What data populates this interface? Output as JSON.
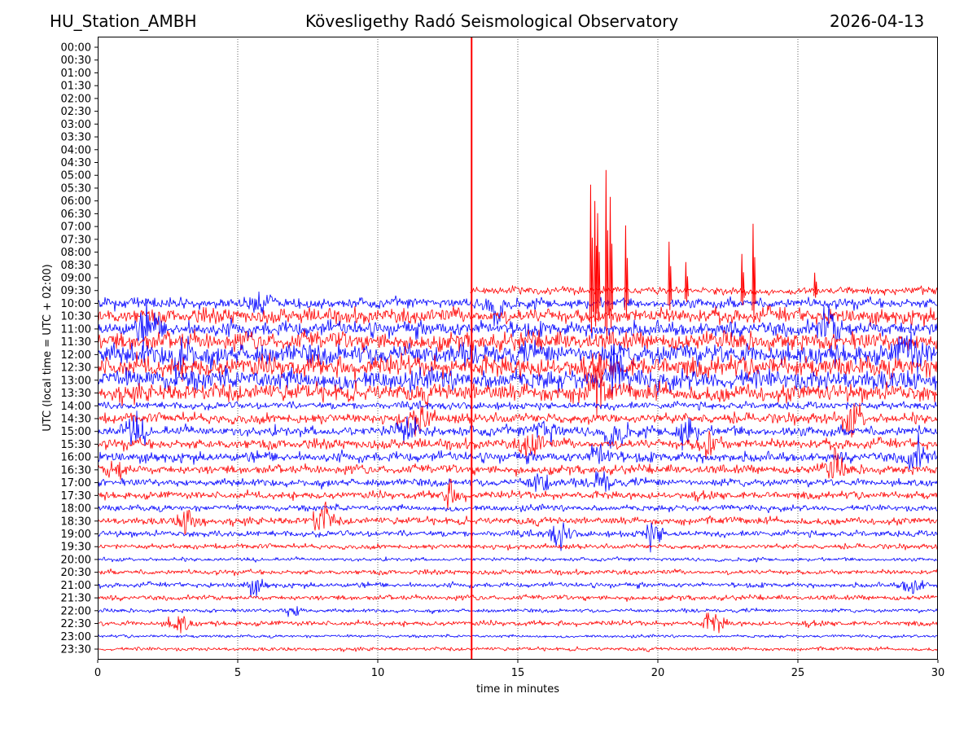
{
  "header": {
    "station": "HU_Station_AMBH",
    "title": "Kövesligethy Radó Seismological Observatory",
    "date": "2026-04-13"
  },
  "chart_data": {
    "type": "line",
    "title": "Kövesligethy Radó Seismological Observatory",
    "xlabel": "time in minutes",
    "ylabel": "UTC (local time = UTC + 02:00)",
    "xlim": [
      0,
      30
    ],
    "xticks": [
      "0",
      "5",
      "10",
      "15",
      "20",
      "25",
      "30"
    ],
    "grid_x_minutes": [
      5,
      10,
      15,
      20,
      25
    ],
    "row_labels": [
      "00:00",
      "00:30",
      "01:00",
      "01:30",
      "02:00",
      "02:30",
      "03:00",
      "03:30",
      "04:00",
      "04:30",
      "05:00",
      "05:30",
      "06:00",
      "06:30",
      "07:00",
      "07:30",
      "08:00",
      "08:30",
      "09:00",
      "09:30",
      "10:00",
      "10:30",
      "11:00",
      "11:30",
      "12:00",
      "12:30",
      "13:00",
      "13:30",
      "14:00",
      "14:30",
      "15:00",
      "15:30",
      "16:00",
      "16:30",
      "17:00",
      "17:30",
      "18:00",
      "18:30",
      "19:00",
      "19:30",
      "20:00",
      "20:30",
      "21:00",
      "21:30",
      "22:00",
      "22:30",
      "23:00",
      "23:30"
    ],
    "colors": {
      "even_rows": "#0000ff",
      "odd_rows": "#ff0000"
    },
    "data_start": {
      "row": "09:30",
      "minute": 13.3
    },
    "row_noise_amplitude": {
      "19": 3,
      "20": 4,
      "21": 6,
      "22": 6,
      "23": 7,
      "24": 8,
      "25": 8,
      "26": 8,
      "27": 7,
      "28": 3,
      "29": 4,
      "30": 4,
      "31": 4,
      "32": 4,
      "33": 3.5,
      "34": 3,
      "35": 3,
      "36": 2.5,
      "37": 3,
      "38": 2.5,
      "39": 2,
      "40": 1.5,
      "41": 2,
      "42": 2,
      "43": 2,
      "44": 1.5,
      "45": 2,
      "46": 1.2,
      "47": 1.5
    },
    "events": [
      {
        "row": "09:30",
        "minute": 13.35,
        "peak": -320,
        "note": "main quake, clipped"
      },
      {
        "row": "09:30",
        "minute": 17.6,
        "peak": 130
      },
      {
        "row": "09:30",
        "minute": 17.75,
        "peak": 110
      },
      {
        "row": "09:30",
        "minute": 17.85,
        "peak": 95
      },
      {
        "row": "09:30",
        "minute": 18.15,
        "peak": 148
      },
      {
        "row": "09:30",
        "minute": 18.3,
        "peak": 115
      },
      {
        "row": "09:30",
        "minute": 18.85,
        "peak": 80
      },
      {
        "row": "09:30",
        "minute": 20.4,
        "peak": 60
      },
      {
        "row": "09:30",
        "minute": 21.0,
        "peak": 35
      },
      {
        "row": "09:30",
        "minute": 23.0,
        "peak": 45
      },
      {
        "row": "09:30",
        "minute": 23.4,
        "peak": 82
      },
      {
        "row": "09:30",
        "minute": 25.6,
        "peak": 22
      }
    ],
    "bursts": [
      {
        "row": "10:00",
        "minute": 5.8,
        "amp": 3
      },
      {
        "row": "10:00",
        "minute": 14.2,
        "amp": 3
      },
      {
        "row": "11:00",
        "minute": 1.8,
        "amp": 2
      },
      {
        "row": "11:00",
        "minute": 26.1,
        "amp": 2
      },
      {
        "row": "12:00",
        "minute": 3.0,
        "amp": 2
      },
      {
        "row": "12:00",
        "minute": 29.0,
        "amp": 2
      },
      {
        "row": "13:30",
        "minute": 17.8,
        "amp": 2.5
      },
      {
        "row": "13:00",
        "minute": 18.5,
        "amp": 2
      },
      {
        "row": "14:30",
        "minute": 11.5,
        "amp": 3
      },
      {
        "row": "14:30",
        "minute": 27.0,
        "amp": 3
      },
      {
        "row": "15:00",
        "minute": 1.3,
        "amp": 3
      },
      {
        "row": "15:00",
        "minute": 11.0,
        "amp": 3
      },
      {
        "row": "15:00",
        "minute": 16.0,
        "amp": 3
      },
      {
        "row": "15:00",
        "minute": 18.5,
        "amp": 3
      },
      {
        "row": "15:00",
        "minute": 21.0,
        "amp": 3
      },
      {
        "row": "15:30",
        "minute": 15.5,
        "amp": 3
      },
      {
        "row": "15:30",
        "minute": 21.8,
        "amp": 3
      },
      {
        "row": "16:00",
        "minute": 18.0,
        "amp": 3
      },
      {
        "row": "16:00",
        "minute": 29.2,
        "amp": 3
      },
      {
        "row": "16:30",
        "minute": 0.7,
        "amp": 2
      },
      {
        "row": "16:30",
        "minute": 26.3,
        "amp": 3
      },
      {
        "row": "17:00",
        "minute": 15.8,
        "amp": 3
      },
      {
        "row": "17:00",
        "minute": 18.0,
        "amp": 3
      },
      {
        "row": "17:30",
        "minute": 12.6,
        "amp": 3
      },
      {
        "row": "18:30",
        "minute": 3.3,
        "amp": 4
      },
      {
        "row": "18:30",
        "minute": 8.0,
        "amp": 4
      },
      {
        "row": "19:00",
        "minute": 16.5,
        "amp": 4
      },
      {
        "row": "19:00",
        "minute": 19.8,
        "amp": 4
      },
      {
        "row": "21:00",
        "minute": 5.6,
        "amp": 3
      },
      {
        "row": "21:00",
        "minute": 29.1,
        "amp": 4
      },
      {
        "row": "22:00",
        "minute": 7.0,
        "amp": 3
      },
      {
        "row": "22:30",
        "minute": 2.9,
        "amp": 4
      },
      {
        "row": "22:30",
        "minute": 22.0,
        "amp": 4
      }
    ]
  }
}
